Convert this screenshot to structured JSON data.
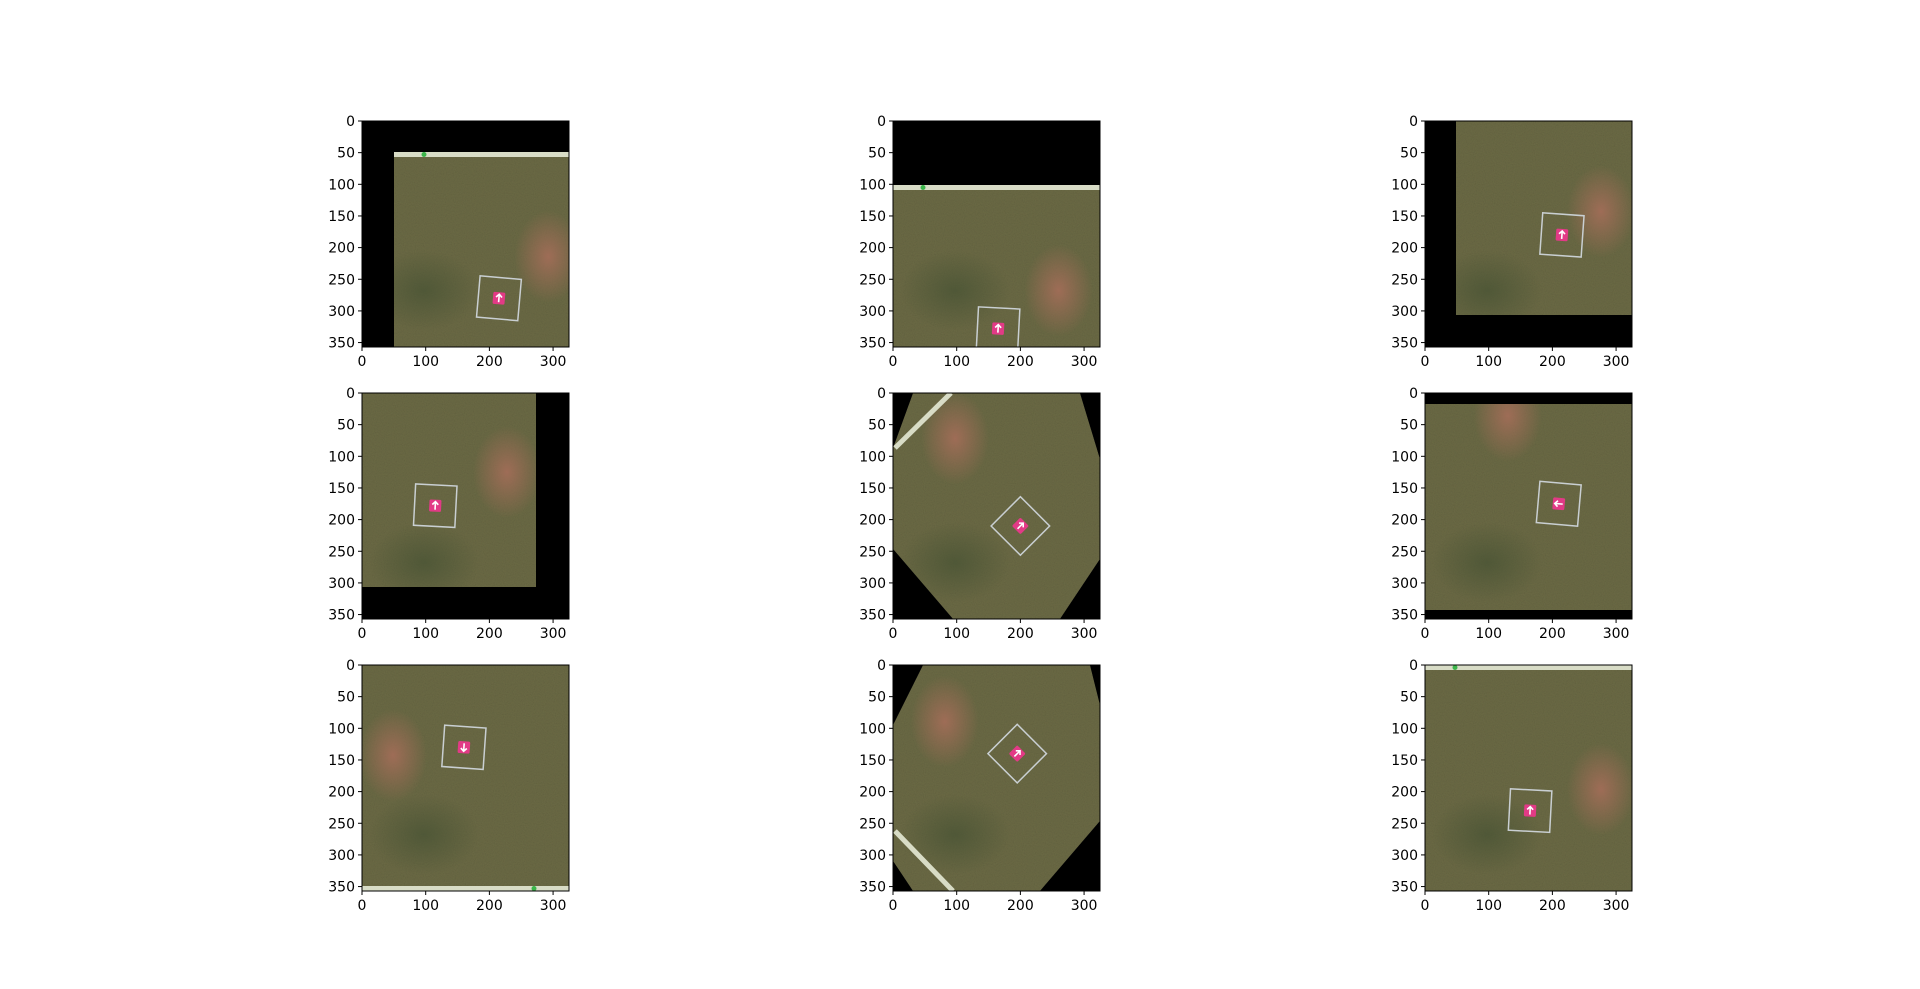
{
  "figure": {
    "background": "#ffffff",
    "grid": "3x3",
    "description": "Augmented aerial grass patches with a pink marker inside a white square target"
  },
  "axes_common": {
    "x_ticks": [
      "0",
      "100",
      "200",
      "300"
    ],
    "y_ticks": [
      "0",
      "50",
      "100",
      "150",
      "200",
      "250",
      "300",
      "350"
    ],
    "xlim": [
      0,
      325
    ],
    "ylim": [
      357,
      0
    ]
  },
  "colors": {
    "grass": "#6b6a45",
    "grass_dark": "#4e5636",
    "soil": "#a3705a",
    "padding": "#000000",
    "square": "#c9cfd2",
    "marker": "#e23a86",
    "strip": "#d8dcc6"
  },
  "panels": [
    {
      "name": "panel-1",
      "pad": "top-left",
      "strip": "top",
      "square_center": [
        215,
        280
      ],
      "square_size": 65,
      "rotation": 5,
      "arrow": "up"
    },
    {
      "name": "panel-2",
      "pad": "top",
      "strip": "top",
      "square_center": [
        165,
        328
      ],
      "square_size": 65,
      "rotation": 3,
      "arrow": "up"
    },
    {
      "name": "panel-3",
      "pad": "left-bottom",
      "strip": "none",
      "square_center": [
        215,
        180
      ],
      "square_size": 65,
      "rotation": 4,
      "arrow": "up"
    },
    {
      "name": "panel-4",
      "pad": "right-bottom",
      "strip": "none",
      "square_center": [
        115,
        178
      ],
      "square_size": 65,
      "rotation": 3,
      "arrow": "up"
    },
    {
      "name": "panel-5",
      "pad": "diamond",
      "strip": "diagonal",
      "square_center": [
        200,
        210
      ],
      "square_size": 65,
      "rotation": 45,
      "arrow": "diag"
    },
    {
      "name": "panel-6",
      "pad": "top-bottom",
      "strip": "none",
      "square_center": [
        210,
        175
      ],
      "square_size": 65,
      "rotation": 5,
      "arrow": "left"
    },
    {
      "name": "panel-7",
      "pad": "none",
      "strip": "bottom",
      "square_center": [
        160,
        130
      ],
      "square_size": 65,
      "rotation": 4,
      "arrow": "down"
    },
    {
      "name": "panel-8",
      "pad": "diamond",
      "strip": "diagonal",
      "square_center": [
        195,
        140
      ],
      "square_size": 65,
      "rotation": 45,
      "arrow": "diag"
    },
    {
      "name": "panel-9",
      "pad": "none",
      "strip": "top",
      "square_center": [
        165,
        230
      ],
      "square_size": 65,
      "rotation": 3,
      "arrow": "up"
    }
  ]
}
